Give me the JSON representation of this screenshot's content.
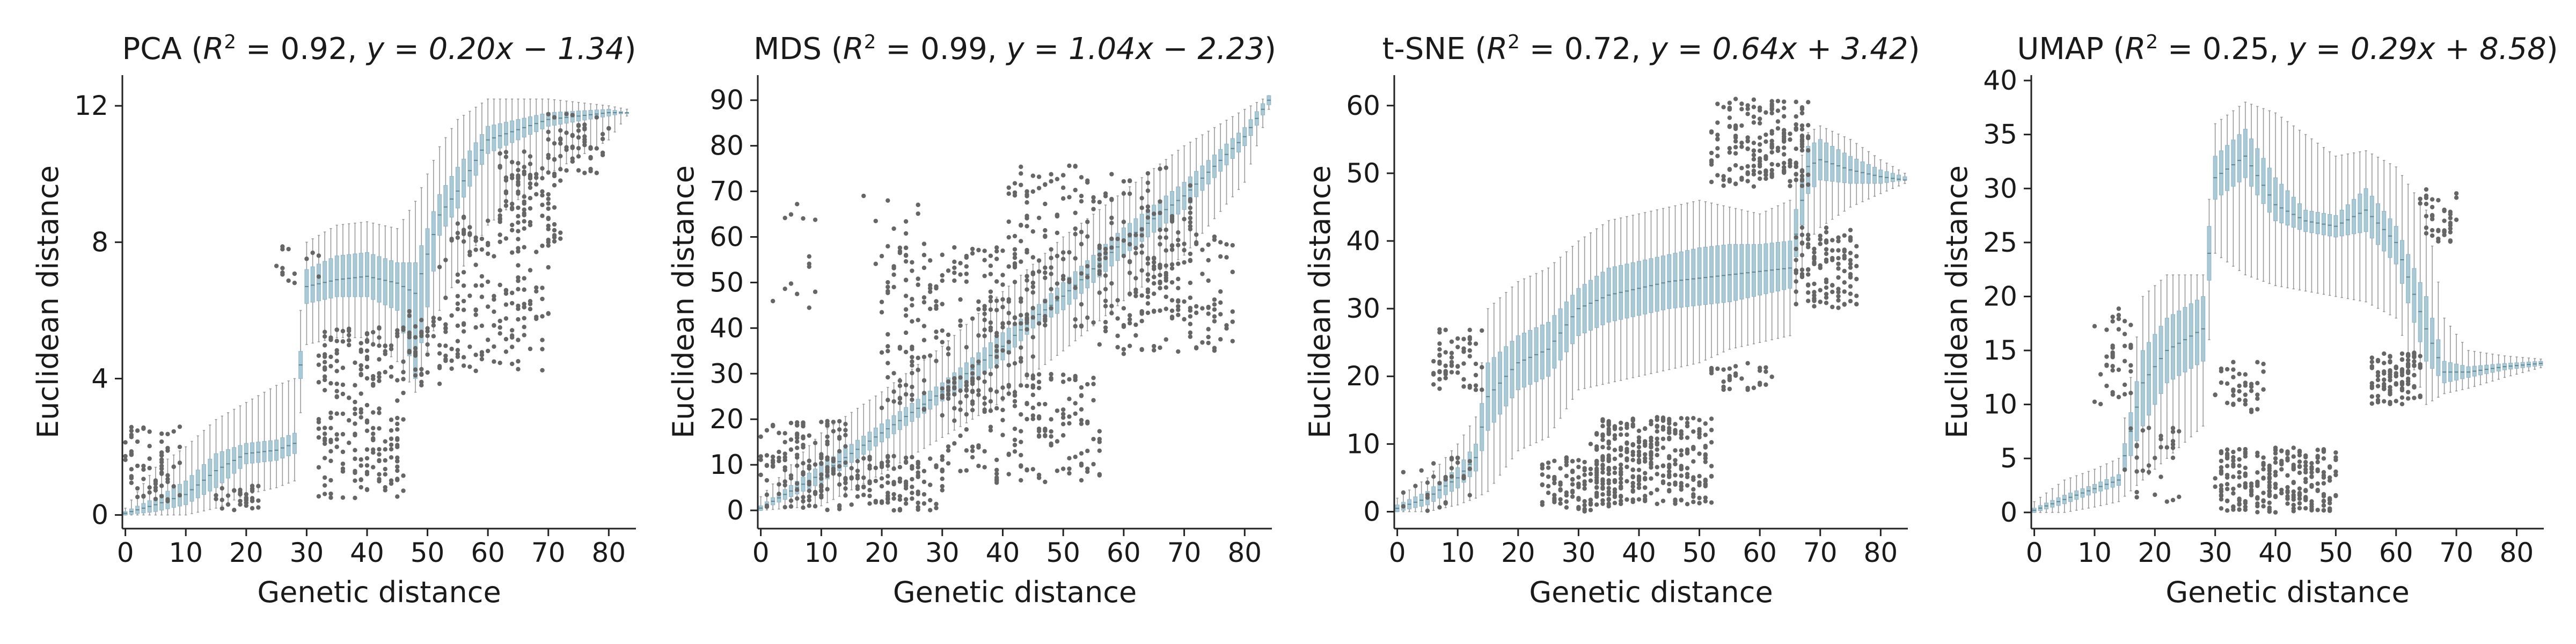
{
  "chart_data": [
    {
      "type": "box",
      "title": "PCA (R² = 0.92, y = 0.20x − 1.34)",
      "title_parts": {
        "prefix": "PCA (",
        "r2_value": "0.92",
        "eq": "y = 0.20x − 1.34"
      },
      "xlabel": "Genetic distance",
      "ylabel": "Euclidean distance",
      "xlim": [
        -0.5,
        84.5
      ],
      "ylim": [
        -0.4,
        12.9
      ],
      "xticks": [
        0,
        10,
        20,
        30,
        40,
        50,
        60,
        70,
        80
      ],
      "yticks": [
        0,
        4,
        8,
        12
      ],
      "profile": {
        "x": [
          0,
          5,
          10,
          15,
          20,
          25,
          28,
          30,
          35,
          40,
          45,
          48,
          52,
          55,
          60,
          70,
          80,
          83
        ],
        "q1": [
          0.0,
          0.1,
          0.3,
          0.8,
          1.5,
          1.6,
          1.8,
          6.2,
          6.4,
          6.4,
          6.0,
          4.0,
          8.2,
          9.0,
          10.6,
          11.4,
          11.7,
          11.8
        ],
        "median": [
          0.05,
          0.3,
          0.6,
          1.3,
          1.8,
          1.9,
          2.1,
          6.7,
          6.9,
          7.0,
          6.8,
          6.5,
          8.8,
          9.5,
          11.0,
          11.6,
          11.8,
          11.8
        ],
        "q3": [
          0.1,
          0.5,
          1.0,
          1.8,
          2.1,
          2.2,
          2.4,
          7.2,
          7.6,
          7.7,
          7.4,
          7.4,
          9.4,
          10.2,
          11.4,
          11.8,
          11.9,
          11.8
        ],
        "whislo": [
          0.0,
          0.0,
          0.0,
          0.2,
          0.6,
          0.8,
          1.0,
          5.0,
          5.2,
          5.2,
          4.5,
          3.6,
          6.0,
          7.0,
          8.5,
          10.0,
          11.0,
          11.7
        ],
        "whishi": [
          0.2,
          1.4,
          2.0,
          2.8,
          3.3,
          3.8,
          4.0,
          8.0,
          8.5,
          8.6,
          8.4,
          9.2,
          10.8,
          11.6,
          12.2,
          12.2,
          12.0,
          11.9
        ]
      },
      "flier_clusters": [
        {
          "x": [
            0,
            9
          ],
          "y": [
            0.4,
            2.6
          ],
          "n": 70
        },
        {
          "x": [
            15,
            22
          ],
          "y": [
            0.1,
            0.9
          ],
          "n": 35
        },
        {
          "x": [
            25,
            32
          ],
          "y": [
            6.8,
            8.0
          ],
          "n": 14
        },
        {
          "x": [
            32,
            46
          ],
          "y": [
            0.5,
            5.5
          ],
          "n": 220
        },
        {
          "x": [
            47,
            52
          ],
          "y": [
            3.8,
            6.0
          ],
          "n": 40
        },
        {
          "x": [
            52,
            70
          ],
          "y": [
            4.2,
            8.8
          ],
          "n": 160
        },
        {
          "x": [
            62,
            72
          ],
          "y": [
            8.0,
            10.8
          ],
          "n": 90
        },
        {
          "x": [
            70,
            80
          ],
          "y": [
            10.0,
            11.8
          ],
          "n": 60
        }
      ]
    },
    {
      "type": "box",
      "title": "MDS (R² = 0.99, y = 1.04x − 2.23)",
      "title_parts": {
        "prefix": "MDS (",
        "r2_value": "0.99",
        "eq": "y = 1.04x − 2.23"
      },
      "xlabel": "Genetic distance",
      "ylabel": "Euclidean distance",
      "xlim": [
        -0.5,
        84.5
      ],
      "ylim": [
        -4,
        95.5
      ],
      "xticks": [
        0,
        10,
        20,
        30,
        40,
        50,
        60,
        70,
        80
      ],
      "yticks": [
        0,
        10,
        20,
        30,
        40,
        50,
        60,
        70,
        80,
        90
      ],
      "profile": {
        "x": [
          0,
          10,
          20,
          30,
          40,
          45,
          50,
          60,
          70,
          80,
          84
        ],
        "q1": [
          0.0,
          6.0,
          15.0,
          24.0,
          33.0,
          40.0,
          44.0,
          56.0,
          66.0,
          80.0,
          89.0
        ],
        "median": [
          0.5,
          8.0,
          17.0,
          26.0,
          36.0,
          42.0,
          47.0,
          59.0,
          69.0,
          82.0,
          90.0
        ],
        "q3": [
          1.0,
          10.0,
          19.0,
          28.0,
          39.0,
          44.0,
          50.0,
          62.0,
          72.0,
          84.0,
          91.0
        ],
        "whislo": [
          0.0,
          1.0,
          8.0,
          16.0,
          24.0,
          30.0,
          35.0,
          46.0,
          56.0,
          72.0,
          88.0
        ],
        "whishi": [
          3.0,
          17.0,
          26.0,
          36.0,
          48.0,
          54.0,
          60.0,
          70.0,
          80.0,
          88.0,
          91.0
        ]
      },
      "flier_clusters": [
        {
          "x": [
            0,
            14
          ],
          "y": [
            0,
            20
          ],
          "n": 140
        },
        {
          "x": [
            2,
            10
          ],
          "y": [
            44,
            68
          ],
          "n": 14
        },
        {
          "x": [
            16,
            28
          ],
          "y": [
            54,
            70
          ],
          "n": 16
        },
        {
          "x": [
            14,
            30
          ],
          "y": [
            0,
            12
          ],
          "n": 120
        },
        {
          "x": [
            20,
            46
          ],
          "y": [
            22,
            58
          ],
          "n": 240
        },
        {
          "x": [
            30,
            56
          ],
          "y": [
            6,
            30
          ],
          "n": 160
        },
        {
          "x": [
            40,
            72
          ],
          "y": [
            40,
            76
          ],
          "n": 240
        },
        {
          "x": [
            56,
            78
          ],
          "y": [
            34,
            62
          ],
          "n": 120
        }
      ]
    },
    {
      "type": "box",
      "title": "t-SNE (R² = 0.72, y = 0.64x + 3.42)",
      "title_parts": {
        "prefix": "t-SNE (",
        "r2_value": "0.72",
        "eq": "y = 0.64x + 3.42"
      },
      "xlabel": "Genetic distance",
      "ylabel": "Euclidean distance",
      "xlim": [
        -0.5,
        84.5
      ],
      "ylim": [
        -2.5,
        64.5
      ],
      "xticks": [
        0,
        10,
        20,
        30,
        40,
        50,
        60,
        70,
        80
      ],
      "yticks": [
        0,
        10,
        20,
        30,
        40,
        50,
        60
      ],
      "profile": {
        "x": [
          0,
          5,
          10,
          13,
          15,
          20,
          25,
          30,
          35,
          40,
          45,
          50,
          55,
          60,
          65,
          68,
          70,
          75,
          80,
          84
        ],
        "q1": [
          0.0,
          1.0,
          3.5,
          6.0,
          12.0,
          18.0,
          20.0,
          26.0,
          28.0,
          29.0,
          30.0,
          30.5,
          31.0,
          32.0,
          33.0,
          47.0,
          49.0,
          48.5,
          48.5,
          49.0
        ],
        "median": [
          0.5,
          2.0,
          5.0,
          8.0,
          17.0,
          22.0,
          24.0,
          30.0,
          32.0,
          33.0,
          34.0,
          34.5,
          35.0,
          35.5,
          36.0,
          51.0,
          52.0,
          50.5,
          49.5,
          49.0
        ],
        "q3": [
          1.0,
          3.0,
          6.5,
          10.0,
          22.0,
          26.0,
          28.0,
          33.0,
          36.0,
          37.0,
          38.0,
          39.0,
          39.5,
          39.5,
          40.0,
          54.0,
          55.0,
          52.5,
          50.5,
          49.5
        ],
        "whislo": [
          0.0,
          0.0,
          1.0,
          2.0,
          3.0,
          9.0,
          11.0,
          18.0,
          19.0,
          20.0,
          21.0,
          22.0,
          24.0,
          25.0,
          26.0,
          40.0,
          42.0,
          45.0,
          47.0,
          48.5
        ],
        "whishi": [
          2.0,
          5.0,
          10.0,
          14.0,
          30.0,
          34.0,
          36.0,
          40.0,
          43.0,
          44.0,
          45.0,
          46.0,
          45.0,
          44.0,
          46.0,
          56.0,
          57.0,
          55.0,
          52.0,
          50.0
        ]
      },
      "flier_clusters": [
        {
          "x": [
            0,
            12
          ],
          "y": [
            0,
            8
          ],
          "n": 30
        },
        {
          "x": [
            6,
            14
          ],
          "y": [
            18,
            27
          ],
          "n": 60
        },
        {
          "x": [
            24,
            36
          ],
          "y": [
            0,
            8
          ],
          "n": 110
        },
        {
          "x": [
            32,
            52
          ],
          "y": [
            1,
            14
          ],
          "n": 320
        },
        {
          "x": [
            52,
            62
          ],
          "y": [
            18,
            22
          ],
          "n": 30
        },
        {
          "x": [
            52,
            68
          ],
          "y": [
            48,
            61
          ],
          "n": 200
        },
        {
          "x": [
            66,
            76
          ],
          "y": [
            30,
            42
          ],
          "n": 120
        }
      ]
    },
    {
      "type": "box",
      "title": "UMAP (R² = 0.25, y = 0.29x + 8.58)",
      "title_parts": {
        "prefix": "UMAP (",
        "r2_value": "0.25",
        "eq": "y = 0.29x + 8.58"
      },
      "xlabel": "Genetic distance",
      "ylabel": "Euclidean distance",
      "xlim": [
        -0.5,
        84.5
      ],
      "ylim": [
        -1.5,
        40.5
      ],
      "xticks": [
        0,
        10,
        20,
        30,
        40,
        50,
        60,
        70,
        80
      ],
      "yticks": [
        0,
        5,
        10,
        15,
        20,
        25,
        30,
        35,
        40
      ],
      "profile": {
        "x": [
          0,
          5,
          10,
          14,
          18,
          22,
          28,
          30,
          35,
          40,
          45,
          50,
          55,
          60,
          65,
          68,
          72,
          78,
          84
        ],
        "q1": [
          0.0,
          0.8,
          1.8,
          2.5,
          8.0,
          12.0,
          14.0,
          29.0,
          31.0,
          27.0,
          26.0,
          25.5,
          26.0,
          23.0,
          14.0,
          12.0,
          12.5,
          13.2,
          13.6
        ],
        "median": [
          0.2,
          1.2,
          2.2,
          3.0,
          12.0,
          15.0,
          17.0,
          31.0,
          33.0,
          28.5,
          27.0,
          26.5,
          28.0,
          25.0,
          17.0,
          13.0,
          13.0,
          13.5,
          13.8
        ],
        "q3": [
          0.4,
          1.6,
          2.6,
          3.5,
          15.0,
          18.0,
          20.0,
          33.0,
          35.5,
          31.0,
          28.0,
          27.5,
          30.0,
          26.5,
          20.0,
          14.0,
          13.5,
          13.8,
          14.0
        ],
        "whislo": [
          0.0,
          0.0,
          0.5,
          1.0,
          3.0,
          5.0,
          8.0,
          24.0,
          22.0,
          21.0,
          20.5,
          20.0,
          19.5,
          18.0,
          10.0,
          11.0,
          11.5,
          12.5,
          13.4
        ],
        "whishi": [
          1.0,
          3.0,
          4.0,
          5.0,
          20.0,
          22.0,
          22.0,
          36.0,
          38.0,
          37.0,
          35.0,
          33.0,
          33.5,
          32.0,
          28.0,
          18.0,
          15.0,
          14.5,
          14.2
        ]
      },
      "flier_clusters": [
        {
          "x": [
            10,
            16
          ],
          "y": [
            10,
            19
          ],
          "n": 40
        },
        {
          "x": [
            15,
            24
          ],
          "y": [
            1,
            8
          ],
          "n": 30
        },
        {
          "x": [
            30,
            50
          ],
          "y": [
            0,
            6
          ],
          "n": 260
        },
        {
          "x": [
            30,
            38
          ],
          "y": [
            9,
            14
          ],
          "n": 40
        },
        {
          "x": [
            56,
            64
          ],
          "y": [
            10,
            15
          ],
          "n": 110
        },
        {
          "x": [
            64,
            70
          ],
          "y": [
            25,
            30
          ],
          "n": 40
        }
      ]
    }
  ]
}
